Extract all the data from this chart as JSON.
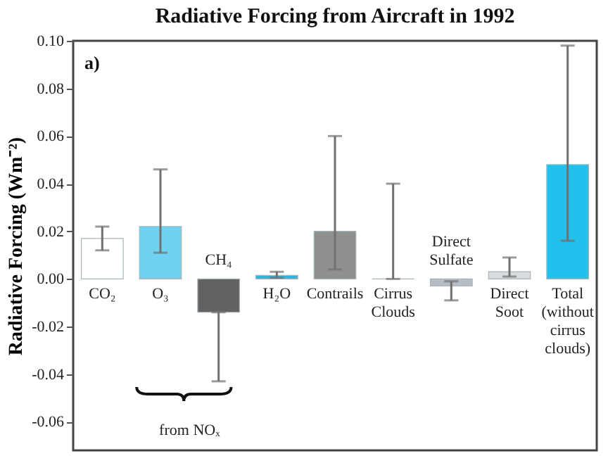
{
  "chart_data": {
    "type": "bar",
    "title": "Radiative Forcing from Aircraft in 1992",
    "ylabel": "Radiative Forcing (Wm⁻²)",
    "categories": [
      "CO₂",
      "O₃",
      "CH₄",
      "H₂O",
      "Contrails",
      "Cirrus Clouds",
      "Direct Sulfate",
      "Direct Soot",
      "Total (without cirrus clouds)"
    ],
    "values": [
      0.017,
      0.022,
      -0.014,
      0.0015,
      0.02,
      0,
      -0.003,
      0.003,
      0.048
    ],
    "colors": [
      "#ffffff",
      "#6fd2f0",
      "#626262",
      "#2ab4e0",
      "#8f8f8f",
      "#8f8f8f",
      "#b4bcc4",
      "#d8dcdc",
      "#22c0ec"
    ],
    "errors": [
      [
        0.012,
        0.022
      ],
      [
        0.011,
        0.046
      ],
      [
        -0.043,
        -0.014
      ],
      [
        0.0005,
        0.003
      ],
      [
        0.004,
        0.06
      ],
      [
        0,
        0.04
      ],
      [
        -0.009,
        -0.001
      ],
      [
        0.001,
        0.009
      ],
      [
        0.016,
        0.098
      ]
    ],
    "ylim": [
      -0.072,
      0.1
    ],
    "yticks": [
      {
        "value": 0.1,
        "label": "0.10"
      },
      {
        "value": 0.08,
        "label": "0.08"
      },
      {
        "value": 0.06,
        "label": "0.06"
      },
      {
        "value": 0.04,
        "label": "0.04"
      },
      {
        "value": 0.02,
        "label": "0.02"
      },
      {
        "value": 0,
        "label": "0.00"
      },
      {
        "value": -0.02,
        "label": "-0.02"
      },
      {
        "value": -0.04,
        "label": "-0.04"
      },
      {
        "value": -0.06,
        "label": "-0.06"
      }
    ],
    "annotations": [
      "a)",
      "from NOₓ"
    ],
    "grid": false
  }
}
